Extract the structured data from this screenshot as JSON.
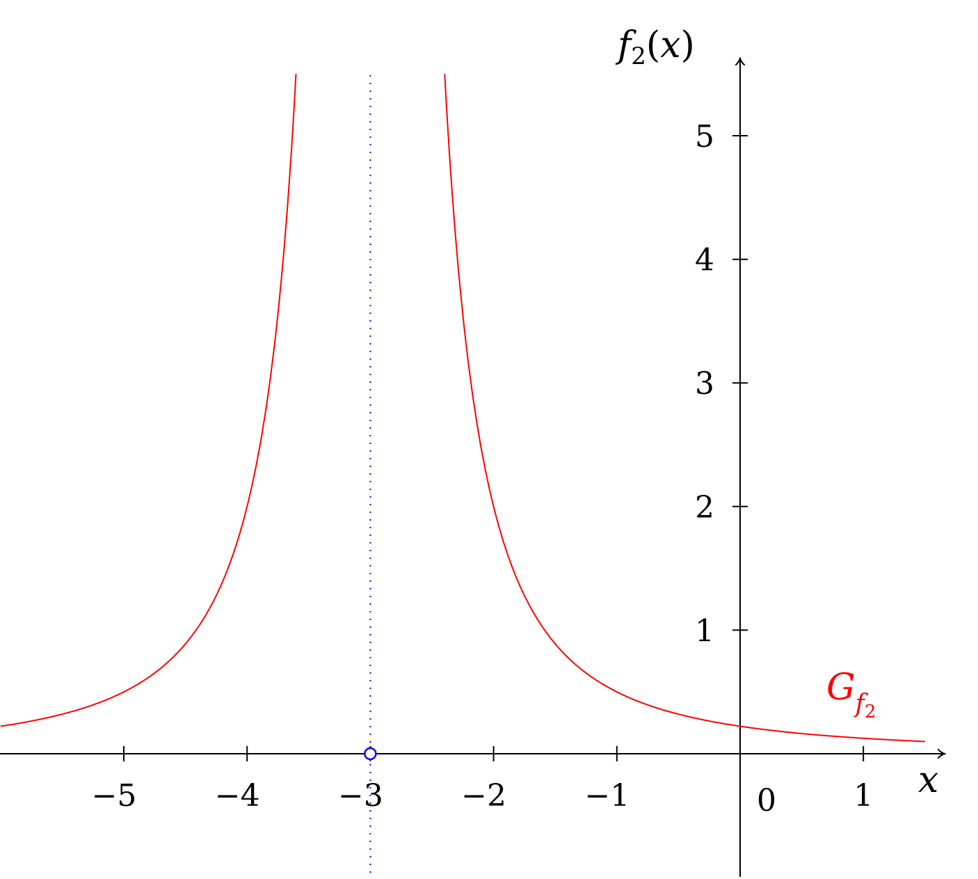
{
  "chart_data": {
    "type": "line",
    "title": "",
    "xlabel": "x",
    "ylabel": "f",
    "ylabel_sub": "2",
    "ylabel_arg": "(x)",
    "xlim": [
      -6,
      1.7
    ],
    "ylim": [
      -1,
      5.5
    ],
    "x_ticks": [
      -5,
      -4,
      -3,
      -2,
      -1,
      1
    ],
    "x_tick_labels": [
      "−5",
      "−4",
      "−3",
      "−2",
      "−1",
      "1"
    ],
    "y_ticks": [
      1,
      2,
      3,
      4,
      5
    ],
    "y_tick_labels": [
      "1",
      "2",
      "3",
      "4",
      "5"
    ],
    "origin_label": "0",
    "grid": false,
    "series": [
      {
        "name": "G",
        "name_sub": "f2",
        "color": "#ff0000",
        "formula": "2/(x+3)^2",
        "x": [
          -6.0,
          -5.5,
          -5.0,
          -4.5,
          -4.0,
          -3.8,
          -3.6,
          -2.4,
          -2.2,
          -2.0,
          -1.5,
          -1.0,
          -0.5,
          0.0,
          0.5,
          1.0,
          1.5
        ],
        "y": [
          0.22,
          0.32,
          0.5,
          0.89,
          2.0,
          3.13,
          5.56,
          5.56,
          3.13,
          2.0,
          0.89,
          0.5,
          0.33,
          0.22,
          0.16,
          0.13,
          0.1
        ]
      }
    ],
    "asymptote": {
      "x": -3,
      "color": "#0000ff",
      "style": "dotted"
    },
    "marker": {
      "x": -3,
      "y": 0,
      "color": "#0000ff",
      "style": "open-circle"
    }
  }
}
